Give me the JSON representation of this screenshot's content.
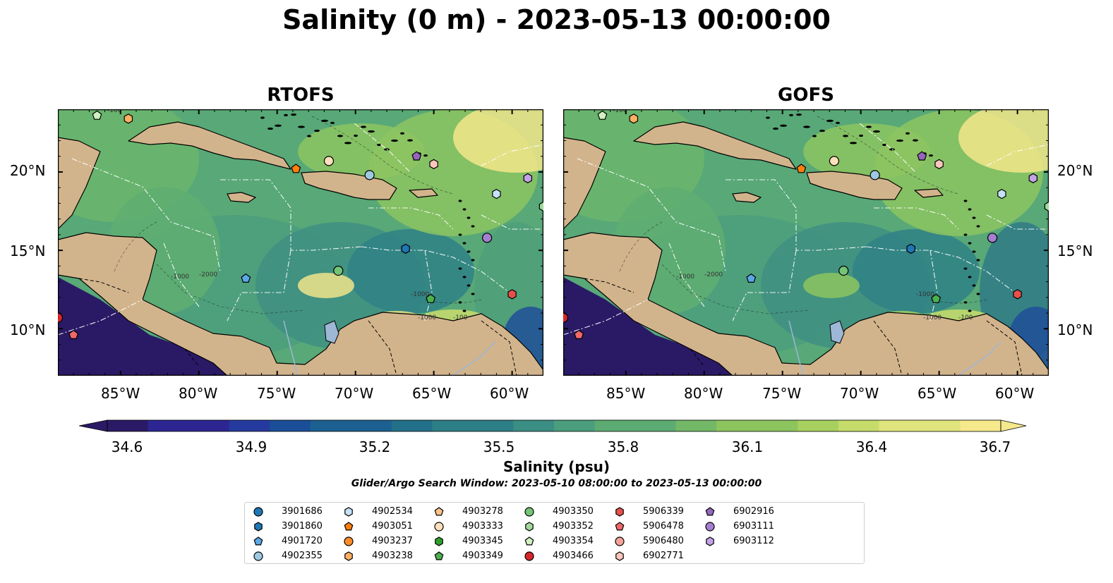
{
  "title": "Salinity (0 m) - 2023-05-13 00:00:00",
  "panels": [
    {
      "title": "RTOFS"
    },
    {
      "title": "GOFS"
    }
  ],
  "lat_labels": [
    "20°N",
    "15°N",
    "10°N"
  ],
  "lon_labels": [
    "85°W",
    "80°W",
    "75°W",
    "70°W",
    "65°W",
    "60°W"
  ],
  "contour_labels": [
    "-100",
    "-1000",
    "-2000",
    "-1000",
    "-1000",
    "-100"
  ],
  "colorbar": {
    "label": "Salinity (psu)",
    "ticks": [
      "34.6",
      "34.9",
      "35.2",
      "35.5",
      "35.8",
      "36.1",
      "36.4",
      "36.7"
    ],
    "range": [
      34.6,
      36.7
    ],
    "colormap": "haline"
  },
  "colors": {
    "land": "#d2b48c",
    "lakes": "#9db7d6",
    "low_salinity": "#2a1a66",
    "high_salinity": "#f5e98c"
  },
  "search_window": "Glider/Argo Search Window: 2023-05-10 08:00:00 to 2023-05-13 00:00:00",
  "legend": [
    {
      "id": "3901686",
      "marker": "circle",
      "color": "#1f77b4"
    },
    {
      "id": "3901860",
      "marker": "hexagon",
      "color": "#1f77b4"
    },
    {
      "id": "4901720",
      "marker": "pentagon",
      "color": "#5aa8e6"
    },
    {
      "id": "4902355",
      "marker": "circle",
      "color": "#9ecae1"
    },
    {
      "id": "4902534",
      "marker": "hexagon",
      "color": "#c6e2f7"
    },
    {
      "id": "4903051",
      "marker": "pentagon",
      "color": "#ff7f0e"
    },
    {
      "id": "4903237",
      "marker": "circle",
      "color": "#ff8c2a"
    },
    {
      "id": "4903238",
      "marker": "hexagon",
      "color": "#ffb062"
    },
    {
      "id": "4903278",
      "marker": "pentagon",
      "color": "#ffc28a"
    },
    {
      "id": "4903333",
      "marker": "circle",
      "color": "#ffe0bd"
    },
    {
      "id": "4903345",
      "marker": "hexagon",
      "color": "#2ca02c"
    },
    {
      "id": "4903349",
      "marker": "pentagon",
      "color": "#4caf50"
    },
    {
      "id": "4903350",
      "marker": "circle",
      "color": "#74c476"
    },
    {
      "id": "4903352",
      "marker": "hexagon",
      "color": "#a1d99b"
    },
    {
      "id": "4903354",
      "marker": "pentagon",
      "color": "#d0f0c0"
    },
    {
      "id": "4903466",
      "marker": "circle",
      "color": "#d62728"
    },
    {
      "id": "5906339",
      "marker": "hexagon",
      "color": "#e8504b"
    },
    {
      "id": "5906478",
      "marker": "pentagon",
      "color": "#f06868"
    },
    {
      "id": "5906480",
      "marker": "circle",
      "color": "#f4a39b"
    },
    {
      "id": "6902771",
      "marker": "hexagon",
      "color": "#fbc7bd"
    },
    {
      "id": "6902916",
      "marker": "pentagon",
      "color": "#9467bd"
    },
    {
      "id": "6903111",
      "marker": "circle",
      "color": "#a67fd0"
    },
    {
      "id": "6903112",
      "marker": "hexagon",
      "color": "#c3a3e6"
    }
  ],
  "floats": [
    {
      "id": "4903354",
      "lon": -86.5,
      "lat": 23.6
    },
    {
      "id": "4903238",
      "lon": -84.5,
      "lat": 23.4
    },
    {
      "id": "4903051",
      "lon": -73.8,
      "lat": 20.2
    },
    {
      "id": "4903333",
      "lon": -71.7,
      "lat": 20.7
    },
    {
      "id": "4902355",
      "lon": -69.1,
      "lat": 19.8
    },
    {
      "id": "6902916",
      "lon": -66.1,
      "lat": 21.0
    },
    {
      "id": "6902771",
      "lon": -65.0,
      "lat": 20.5
    },
    {
      "id": "4902534",
      "lon": -61.0,
      "lat": 18.6
    },
    {
      "id": "6903112",
      "lon": -59.0,
      "lat": 19.6
    },
    {
      "id": "4903352",
      "lon": -58.0,
      "lat": 17.8
    },
    {
      "id": "3901860",
      "lon": -66.8,
      "lat": 15.1
    },
    {
      "id": "6903111",
      "lon": -61.6,
      "lat": 15.8
    },
    {
      "id": "4901720",
      "lon": -77.0,
      "lat": 13.2
    },
    {
      "id": "4903350",
      "lon": -71.1,
      "lat": 13.7
    },
    {
      "id": "4903349",
      "lon": -65.2,
      "lat": 11.9
    },
    {
      "id": "5906339",
      "lon": -60.0,
      "lat": 12.2
    },
    {
      "id": "4903466",
      "lon": -89.0,
      "lat": 10.7
    },
    {
      "id": "5906478",
      "lon": -88.0,
      "lat": 9.6
    }
  ]
}
